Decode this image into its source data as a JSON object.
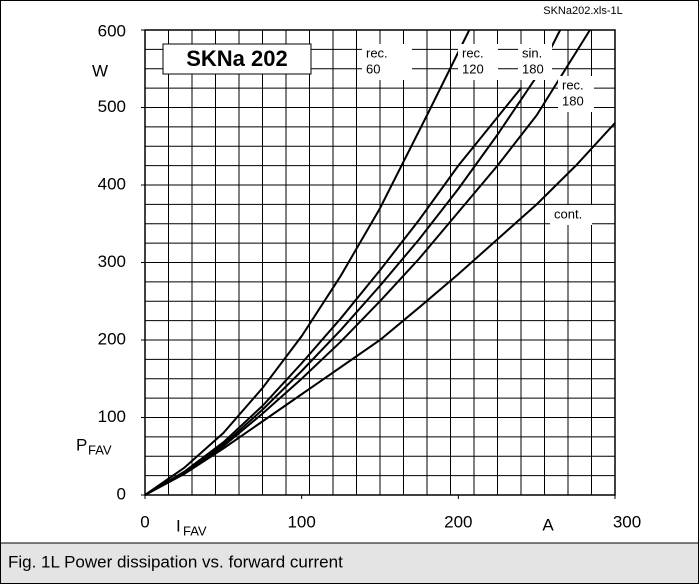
{
  "chart_data": {
    "type": "line",
    "corner_note": "SKNa202.xls-1L",
    "title": "SKNa 202",
    "caption": "Fig. 1L Power dissipation vs. forward current",
    "x_label": {
      "main": "I",
      "sub": "FAV"
    },
    "x_unit": "A",
    "y_label": {
      "main": "P",
      "sub": "FAV"
    },
    "y_unit": "W",
    "xlim": [
      0,
      300
    ],
    "xticks": [
      0,
      100,
      200,
      300
    ],
    "ylim": [
      0,
      600
    ],
    "yticks": [
      0,
      100,
      200,
      300,
      400,
      500,
      600
    ],
    "xgrid": [
      0,
      15,
      30,
      45,
      60,
      75,
      90,
      105,
      120,
      135,
      150,
      165,
      180,
      195,
      210,
      225,
      240,
      255,
      270,
      285,
      300
    ],
    "ygrid": [
      0,
      25,
      50,
      75,
      100,
      125,
      150,
      175,
      200,
      225,
      250,
      275,
      300,
      325,
      350,
      375,
      400,
      425,
      450,
      475,
      500,
      525,
      550,
      575,
      600
    ],
    "grid": true,
    "series": [
      {
        "name": [
          "rec.",
          "60"
        ],
        "color": "#000000",
        "x": [
          0,
          25,
          50,
          75,
          100,
          125,
          150,
          180,
          207
        ],
        "values": [
          0,
          35,
          80,
          138,
          205,
          283,
          370,
          490,
          600
        ]
      },
      {
        "name": [
          "rec.",
          "120"
        ],
        "color": "#000000",
        "x": [
          0,
          25,
          50,
          75,
          100,
          125,
          150,
          175,
          200,
          220,
          240
        ],
        "values": [
          0,
          30,
          68,
          115,
          170,
          228,
          290,
          355,
          425,
          475,
          525
        ]
      },
      {
        "name": [
          "sin.",
          "180"
        ],
        "color": "#000000",
        "x": [
          0,
          25,
          50,
          75,
          100,
          125,
          150,
          175,
          200,
          225,
          250,
          265
        ],
        "values": [
          0,
          29,
          65,
          110,
          160,
          213,
          270,
          330,
          395,
          465,
          540,
          600
        ]
      },
      {
        "name": [
          "rec.",
          "180"
        ],
        "color": "#000000",
        "x": [
          0,
          25,
          50,
          75,
          100,
          125,
          150,
          175,
          200,
          225,
          250,
          284
        ],
        "values": [
          0,
          28,
          63,
          105,
          150,
          198,
          250,
          305,
          365,
          425,
          490,
          600
        ]
      },
      {
        "name": [
          "cont."
        ],
        "color": "#000000",
        "x": [
          0,
          25,
          50,
          75,
          100,
          125,
          150,
          175,
          200,
          225,
          250,
          275,
          300
        ],
        "values": [
          0,
          27,
          60,
          95,
          130,
          165,
          200,
          242,
          285,
          330,
          375,
          425,
          480
        ]
      }
    ]
  }
}
